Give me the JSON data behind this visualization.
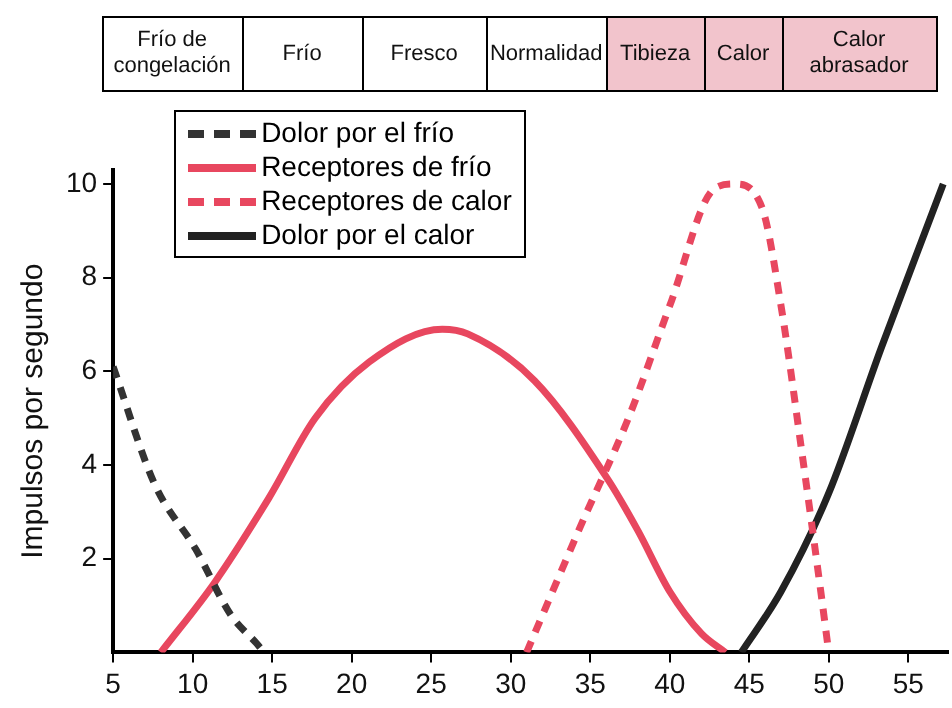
{
  "chart_data": {
    "type": "line",
    "xlabel": null,
    "ylabel": "Impulsos por segundo",
    "xlim": [
      5,
      57.5
    ],
    "ylim": [
      0,
      10.3
    ],
    "xticks": [
      5,
      10,
      15,
      20,
      25,
      30,
      35,
      40,
      45,
      50,
      55
    ],
    "yticks": [
      2,
      4,
      6,
      8,
      10
    ],
    "grid": false,
    "legend": "top left",
    "marker": "none",
    "annotations": [
      "Frío de congelación",
      "Frío",
      "Fresco",
      "Normalidad",
      "Tibieza",
      "Calor",
      "Calor abrasador"
    ],
    "series": [
      {
        "name": "Dolor por el frío",
        "color": "#333333",
        "line_style": "dashed",
        "x": [
          5,
          7.6,
          10.2,
          12.4,
          14,
          14.5
        ],
        "values": [
          6.1,
          3.6,
          2.2,
          0.8,
          0.2,
          0
        ]
      },
      {
        "name": "Receptores de frío",
        "color": "#e8475f",
        "line_style": "solid",
        "x": [
          8,
          11.4,
          14.8,
          17.7,
          21.1,
          25.7,
          27.3,
          31.5,
          36.1,
          38,
          40,
          42,
          43.5
        ],
        "values": [
          0,
          1.5,
          3.3,
          5,
          6.2,
          6.9,
          6.8,
          5.8,
          3.7,
          2.6,
          1.3,
          0.4,
          0
        ]
      },
      {
        "name": "Receptores de calor",
        "color": "#e8475f",
        "line_style": "dashed",
        "x": [
          31,
          34.4,
          37.4,
          40,
          42.8,
          44.1,
          45.8,
          47,
          48.3,
          49.5,
          50
        ],
        "values": [
          0,
          2.7,
          5,
          7.4,
          9.9,
          10,
          9.5,
          7.4,
          4.3,
          1.3,
          0
        ]
      },
      {
        "name": "Dolor por el calor",
        "color": "#222222",
        "line_style": "solid",
        "x": [
          44.5,
          47,
          50,
          53.3,
          57.2
        ],
        "values": [
          0,
          1.3,
          3.4,
          6.5,
          10
        ]
      }
    ]
  }
}
